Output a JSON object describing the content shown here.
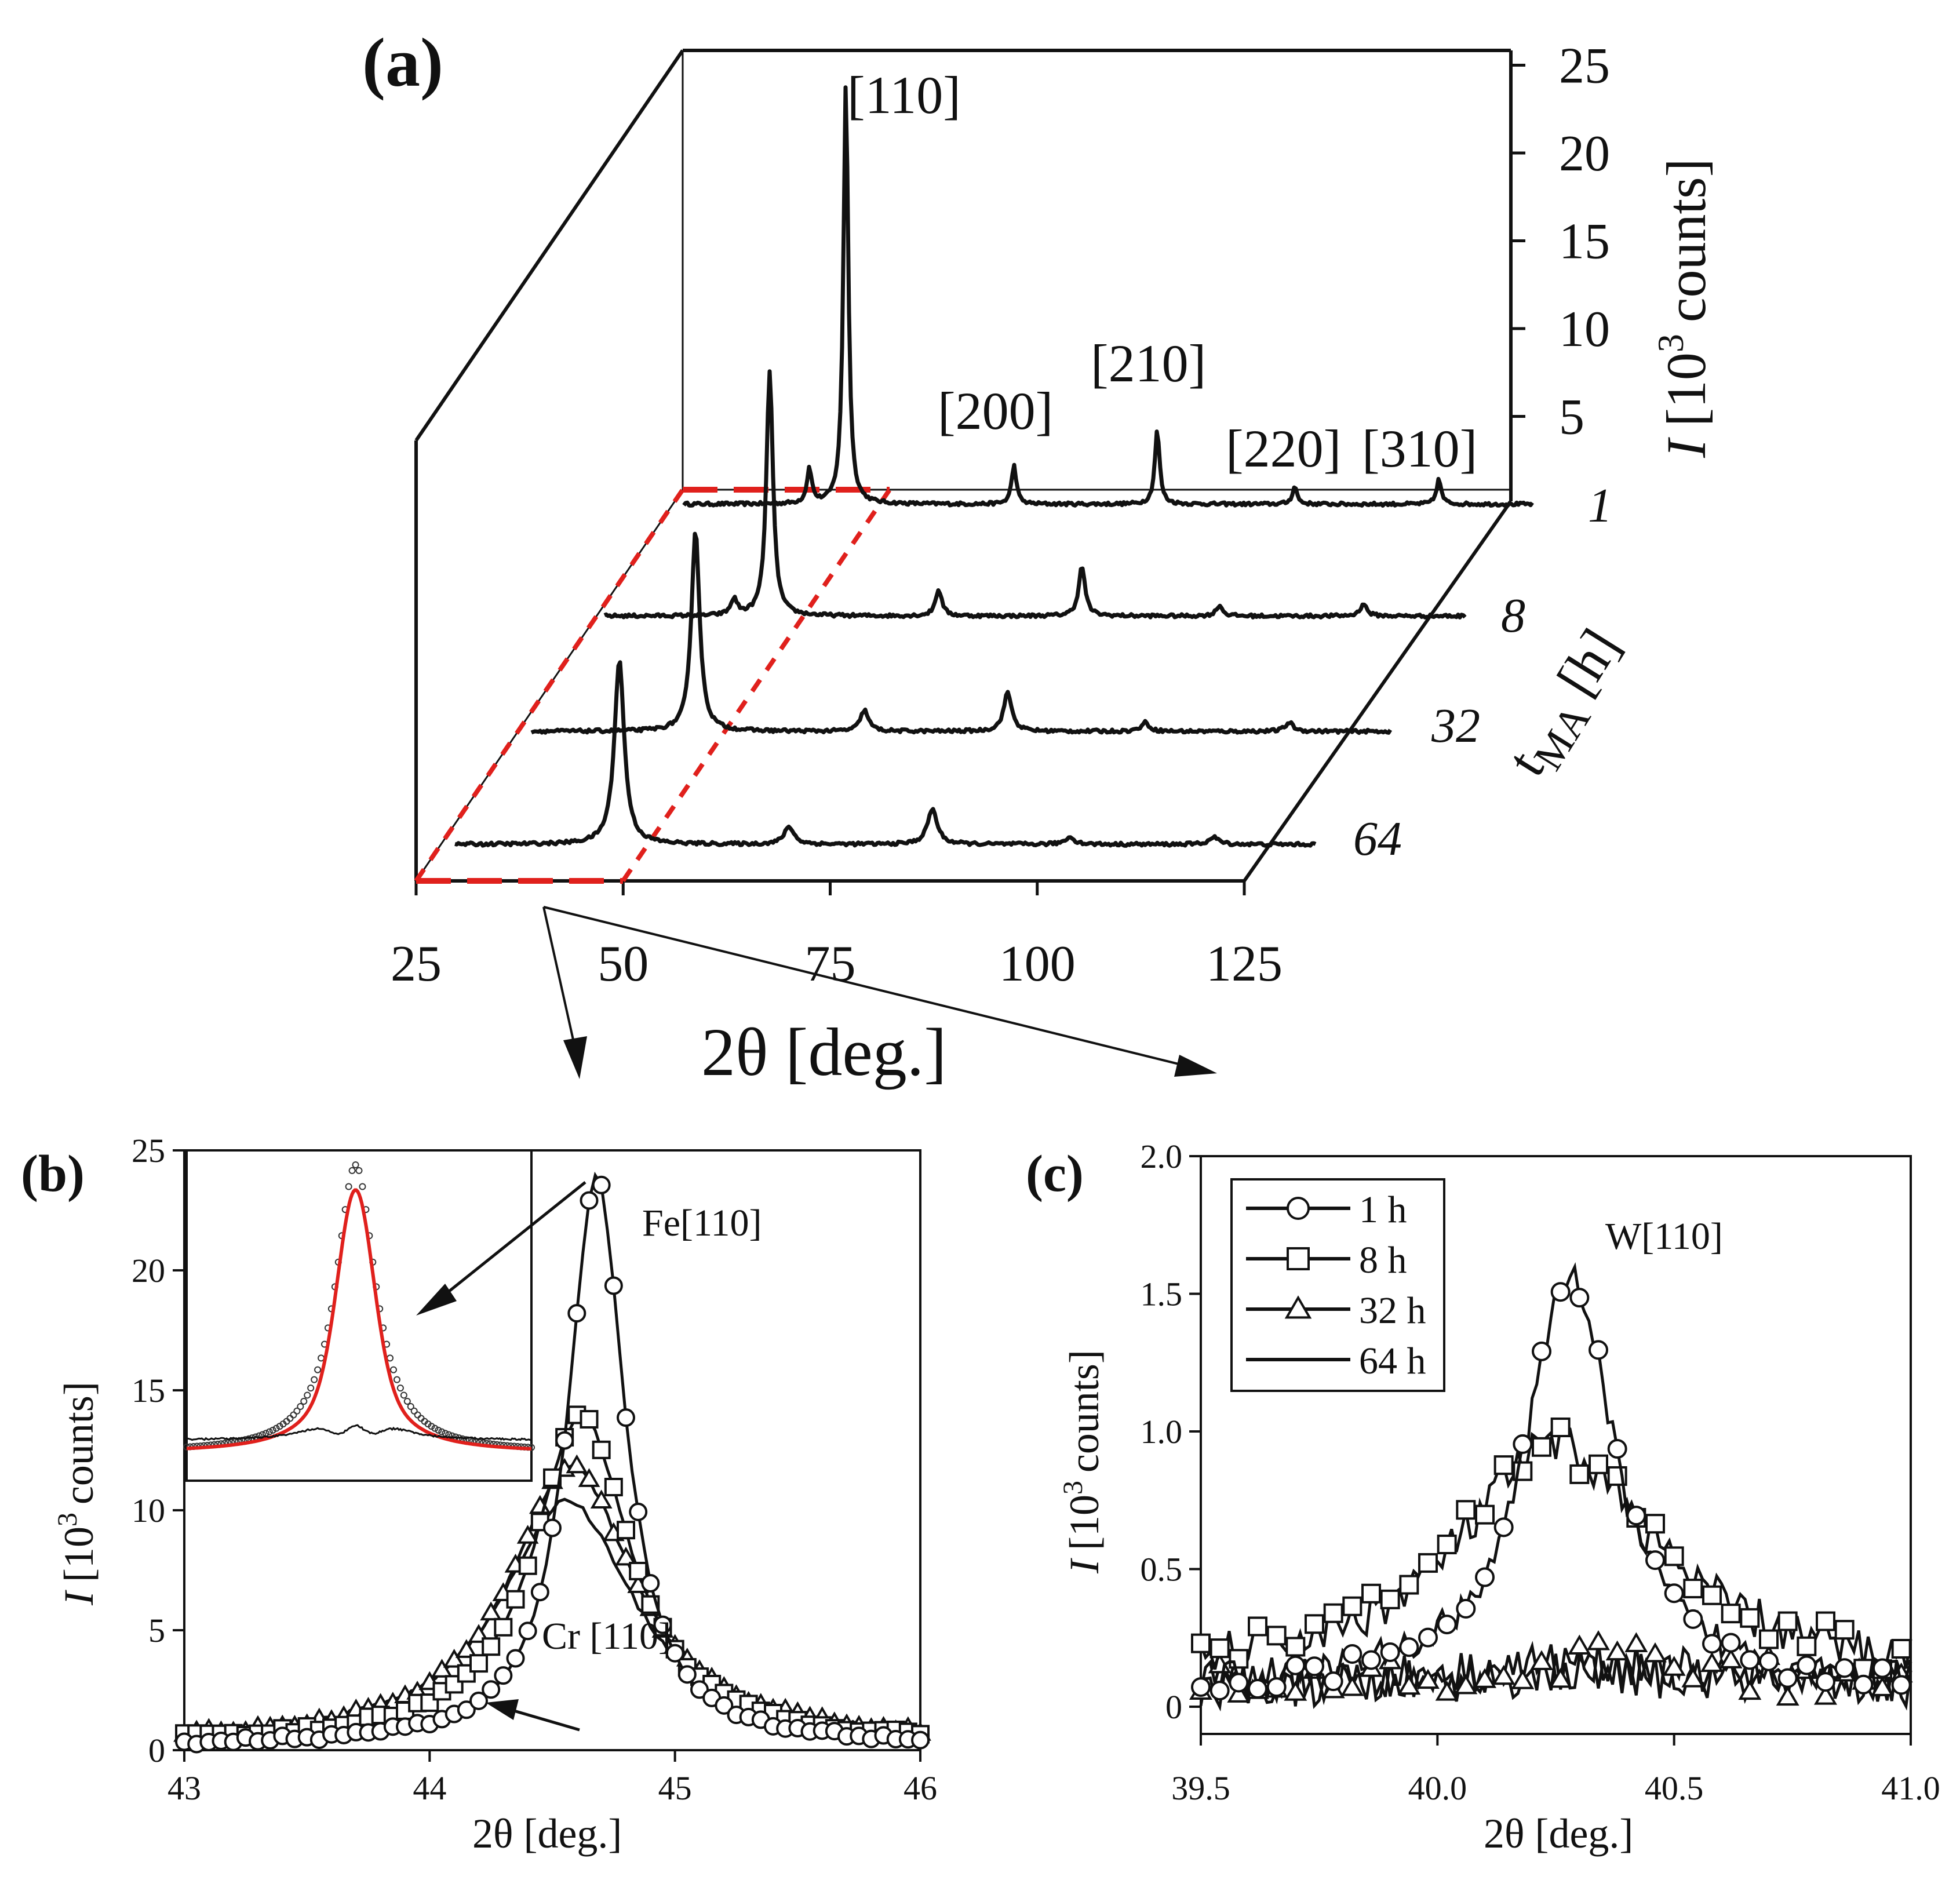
{
  "chart_data": [
    {
      "panel": "(a)",
      "type": "line",
      "title": "",
      "xlabel": "2θ [deg.]",
      "ylabel": "I [10³ counts]",
      "zlabel": "tMA [h]",
      "xlim": [
        25,
        125
      ],
      "ylim": [
        0,
        25
      ],
      "x_ticks": [
        "25",
        "50",
        "75",
        "100",
        "125"
      ],
      "y_ticks": [
        "5",
        "10",
        "15",
        "20",
        "25"
      ],
      "series_labels": [
        "1",
        "8",
        "32",
        "64"
      ],
      "peak_labels": [
        "[110]",
        "[200]",
        "[210]",
        "[220]",
        "[310]"
      ],
      "series": [
        {
          "name": "1",
          "peaks": [
            {
              "x": 40.3,
              "y": 2.0
            },
            {
              "x": 44.7,
              "y": 24.0
            },
            {
              "x": 65.0,
              "y": 2.2
            },
            {
              "x": 82.3,
              "y": 4.2
            },
            {
              "x": 98.9,
              "y": 1.0
            },
            {
              "x": 116.3,
              "y": 1.4
            }
          ]
        },
        {
          "name": "8",
          "peaks": [
            {
              "x": 40.3,
              "y": 0.9
            },
            {
              "x": 44.6,
              "y": 14.0
            },
            {
              "x": 65.0,
              "y": 1.5
            },
            {
              "x": 82.3,
              "y": 2.8
            },
            {
              "x": 98.9,
              "y": 0.6
            },
            {
              "x": 116.3,
              "y": 0.7
            }
          ]
        },
        {
          "name": "32",
          "peaks": [
            {
              "x": 44.6,
              "y": 11.5
            },
            {
              "x": 65.0,
              "y": 1.2
            },
            {
              "x": 82.3,
              "y": 2.2
            },
            {
              "x": 98.9,
              "y": 0.5
            },
            {
              "x": 116.3,
              "y": 0.5
            }
          ]
        },
        {
          "name": "64",
          "peaks": [
            {
              "x": 44.5,
              "y": 10.5
            },
            {
              "x": 65.0,
              "y": 1.0
            },
            {
              "x": 82.3,
              "y": 2.0
            },
            {
              "x": 98.9,
              "y": 0.4
            },
            {
              "x": 116.3,
              "y": 0.4
            }
          ]
        }
      ]
    },
    {
      "panel": "(b)",
      "type": "line",
      "xlabel": "2θ [deg.]",
      "ylabel": "I [10³ counts]",
      "xlim": [
        43,
        46
      ],
      "ylim": [
        0,
        25
      ],
      "x_ticks": [
        "43",
        "44",
        "45",
        "46"
      ],
      "y_ticks": [
        "0",
        "5",
        "10",
        "15",
        "20",
        "25"
      ],
      "annotations": [
        "Fe[110]",
        "Cr [110]"
      ],
      "series": [
        {
          "name": "1 h",
          "marker": "circle",
          "center": 44.68,
          "peak": 24.0,
          "hwhm": 0.14,
          "base": 0.2
        },
        {
          "name": "8 h",
          "marker": "square",
          "center": 44.62,
          "peak": 14.0,
          "hwhm": 0.24,
          "base": 0.3
        },
        {
          "name": "32 h",
          "marker": "triangle",
          "center": 44.58,
          "peak": 11.8,
          "hwhm": 0.31,
          "base": 0.3
        },
        {
          "name": "64 h",
          "marker": "none",
          "center": 44.56,
          "peak": 10.4,
          "hwhm": 0.33,
          "base": 0.3
        }
      ],
      "inset": {
        "series": [
          "data",
          "fit",
          "residual"
        ]
      }
    },
    {
      "panel": "(c)",
      "type": "line",
      "xlabel": "2θ [deg.]",
      "ylabel": "I [10³ counts]",
      "xlim": [
        39.5,
        41.0
      ],
      "ylim": [
        -0.1,
        2.0
      ],
      "x_ticks": [
        "39.5",
        "40.0",
        "40.5",
        "41.0"
      ],
      "y_ticks": [
        "0",
        "0.5",
        "1.0",
        "1.5",
        "2.0"
      ],
      "annotations": [
        "W[110]"
      ],
      "legend": [
        "1 h",
        "8 h",
        "32 h",
        "64 h"
      ],
      "series": [
        {
          "name": "1 h",
          "marker": "circle",
          "center": 40.28,
          "peak": 1.5,
          "hwhm": 0.11,
          "base": 0.08
        },
        {
          "name": "8 h",
          "marker": "square",
          "center": 40.25,
          "peak": 0.85,
          "hwhm": 0.25,
          "base": 0.1
        },
        {
          "name": "32 h",
          "marker": "triangle",
          "center": 40.3,
          "peak": 0.08,
          "hwhm": 0.3,
          "base": 0.08
        },
        {
          "name": "64 h",
          "marker": "none",
          "center": 40.3,
          "peak": 0.05,
          "hwhm": 0.3,
          "base": 0.07
        }
      ]
    }
  ],
  "panel_labels": {
    "a": "(a)",
    "b": "(b)",
    "c": "(c)"
  },
  "panel_a": {
    "peak_labels": [
      "[110]",
      "[200]",
      "[210]",
      "[220]",
      "[310]"
    ],
    "x_ticks": [
      "25",
      "50",
      "75",
      "100",
      "125"
    ],
    "y_ticks": [
      "5",
      "10",
      "15",
      "20",
      "25"
    ],
    "series_labels": [
      "1",
      "8",
      "32",
      "64"
    ],
    "xlabel": "2θ [deg.]",
    "ylabel_italic": "I",
    "ylabel_rest": "[10",
    "ylabel_sup": "3",
    "ylabel_end": "counts]",
    "zlabel_main": "t",
    "zlabel_sub": "MA",
    "zlabel_end": "[h]"
  },
  "panel_b": {
    "x_ticks": [
      "43",
      "44",
      "45",
      "46"
    ],
    "y_ticks": [
      "0",
      "5",
      "10",
      "15",
      "20",
      "25"
    ],
    "xlabel": "2θ [deg.]",
    "ylabel_italic": "I",
    "ylabel_rest": "[10",
    "ylabel_sup": "3",
    "ylabel_end": "counts]",
    "fe_label": "Fe[110]",
    "cr_label": "Cr [110]"
  },
  "panel_c": {
    "x_ticks": [
      "39.5",
      "40.0",
      "40.5",
      "41.0"
    ],
    "y_ticks": [
      "0",
      "0.5",
      "1.0",
      "1.5",
      "2.0"
    ],
    "xlabel": "2θ [deg.]",
    "ylabel_italic": "I",
    "ylabel_rest": "[10",
    "ylabel_sup": "3",
    "ylabel_end": "counts]",
    "w_label": "W[110]",
    "legend": [
      "1 h",
      "8 h",
      "32 h",
      "64 h"
    ]
  }
}
